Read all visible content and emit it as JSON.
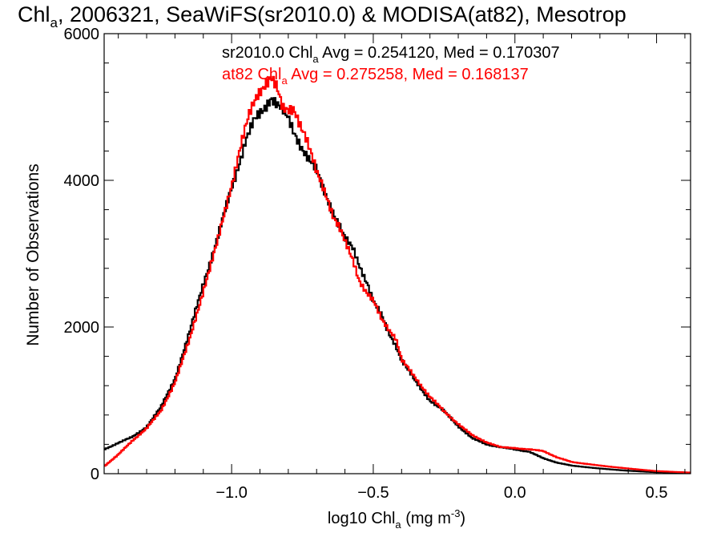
{
  "chart_data": {
    "type": "line",
    "title_parts": {
      "pre": "Chl",
      "sub": "a",
      "post": ", 2006321, SeaWiFS(sr2010.0) & MODISA(at82), Mesotrop"
    },
    "xlabel_parts": {
      "pre": "log10 Chl",
      "sub": "a",
      "mid": " (mg m",
      "sup": "-3",
      "post": ")"
    },
    "ylabel": "Number of Observations",
    "xlim": [
      -1.45,
      0.62
    ],
    "ylim": [
      0,
      6000
    ],
    "x_ticks": [
      -1.0,
      -0.5,
      0.0,
      0.5
    ],
    "x_tick_labels": [
      "−1.0",
      "−0.5",
      "0.0",
      "0.5"
    ],
    "y_ticks": [
      0,
      2000,
      4000,
      6000
    ],
    "y_tick_labels": [
      "0",
      "2000",
      "4000",
      "6000"
    ],
    "grid": false,
    "legend_position": "top",
    "series": [
      {
        "name": "sr2010.0",
        "color": "#000000",
        "stats_parts": {
          "pre": "sr2010.0 Chl",
          "sub": "a",
          "post": " Avg = 0.254120, Med = 0.170307"
        },
        "x": [
          -1.45,
          -1.4,
          -1.35,
          -1.3,
          -1.25,
          -1.2,
          -1.15,
          -1.1,
          -1.05,
          -1.0,
          -0.95,
          -0.92,
          -0.89,
          -0.86,
          -0.84,
          -0.82,
          -0.8,
          -0.78,
          -0.75,
          -0.72,
          -0.7,
          -0.68,
          -0.65,
          -0.62,
          -0.6,
          -0.57,
          -0.55,
          -0.52,
          -0.5,
          -0.47,
          -0.45,
          -0.42,
          -0.4,
          -0.35,
          -0.3,
          -0.25,
          -0.2,
          -0.15,
          -0.1,
          -0.05,
          0.0,
          0.05,
          0.1,
          0.15,
          0.2,
          0.3,
          0.4,
          0.5,
          0.62
        ],
        "y": [
          330,
          420,
          500,
          640,
          900,
          1300,
          1900,
          2600,
          3200,
          3900,
          4550,
          4800,
          4950,
          5150,
          5050,
          4950,
          4820,
          4650,
          4450,
          4250,
          4120,
          3900,
          3650,
          3400,
          3200,
          3050,
          2850,
          2600,
          2350,
          2150,
          1950,
          1750,
          1550,
          1250,
          1000,
          850,
          650,
          480,
          400,
          360,
          330,
          300,
          210,
          150,
          110,
          70,
          40,
          20,
          10
        ]
      },
      {
        "name": "at82",
        "color": "#ff0000",
        "stats_parts": {
          "pre": "at82 Chl",
          "sub": "a",
          "post": " Avg = 0.275258, Med = 0.168137"
        },
        "x": [
          -1.45,
          -1.4,
          -1.35,
          -1.3,
          -1.25,
          -1.2,
          -1.15,
          -1.1,
          -1.05,
          -1.0,
          -0.97,
          -0.94,
          -0.91,
          -0.88,
          -0.86,
          -0.84,
          -0.82,
          -0.8,
          -0.78,
          -0.76,
          -0.74,
          -0.72,
          -0.7,
          -0.68,
          -0.66,
          -0.64,
          -0.62,
          -0.6,
          -0.57,
          -0.55,
          -0.52,
          -0.5,
          -0.47,
          -0.45,
          -0.42,
          -0.4,
          -0.35,
          -0.3,
          -0.25,
          -0.2,
          -0.15,
          -0.1,
          -0.05,
          0.0,
          0.05,
          0.1,
          0.15,
          0.2,
          0.3,
          0.4,
          0.5,
          0.62
        ],
        "y": [
          100,
          260,
          450,
          620,
          850,
          1250,
          1800,
          2500,
          3150,
          3950,
          4450,
          4850,
          5150,
          5350,
          5420,
          5250,
          4950,
          4950,
          5000,
          4800,
          4600,
          4350,
          4100,
          3950,
          3750,
          3500,
          3350,
          3150,
          2900,
          2650,
          2450,
          2350,
          2100,
          2000,
          1850,
          1550,
          1300,
          1050,
          850,
          680,
          520,
          430,
          360,
          350,
          330,
          310,
          220,
          160,
          110,
          70,
          35,
          15
        ]
      }
    ]
  }
}
